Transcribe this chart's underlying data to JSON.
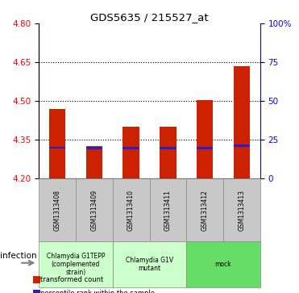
{
  "title": "GDS5635 / 215527_at",
  "samples": [
    "GSM1313408",
    "GSM1313409",
    "GSM1313410",
    "GSM1313411",
    "GSM1313412",
    "GSM1313413"
  ],
  "transformed_counts": [
    4.47,
    4.325,
    4.4,
    4.4,
    4.505,
    4.635
  ],
  "percentile_ranks": [
    0.2,
    0.195,
    0.195,
    0.195,
    0.195,
    0.215
  ],
  "bar_bottom": 4.2,
  "ylim_left": [
    4.2,
    4.8
  ],
  "ylim_right": [
    0,
    100
  ],
  "left_yticks": [
    4.2,
    4.35,
    4.5,
    4.65,
    4.8
  ],
  "right_yticks": [
    0,
    25,
    50,
    75,
    100
  ],
  "right_yticklabels": [
    "0",
    "25",
    "50",
    "75",
    "100%"
  ],
  "groups": [
    {
      "label": "Chlamydia G1TEPP\n(complemented\nstrain)",
      "indices": [
        0,
        1
      ],
      "color": "#ccffcc"
    },
    {
      "label": "Chlamydia G1V\nmutant",
      "indices": [
        2,
        3
      ],
      "color": "#ccffcc"
    },
    {
      "label": "mock",
      "indices": [
        4,
        5
      ],
      "color": "#66dd66"
    }
  ],
  "group_factor_label": "infection",
  "bar_color": "#cc2200",
  "percentile_color": "#2222cc",
  "bar_width": 0.45,
  "dotted_yticks": [
    4.35,
    4.5,
    4.65
  ],
  "legend_items": [
    {
      "label": "transformed count",
      "color": "#cc2200"
    },
    {
      "label": "percentile rank within the sample",
      "color": "#2222cc"
    }
  ],
  "sample_box_color": "#c8c8c8",
  "group_box_border": "#888888"
}
